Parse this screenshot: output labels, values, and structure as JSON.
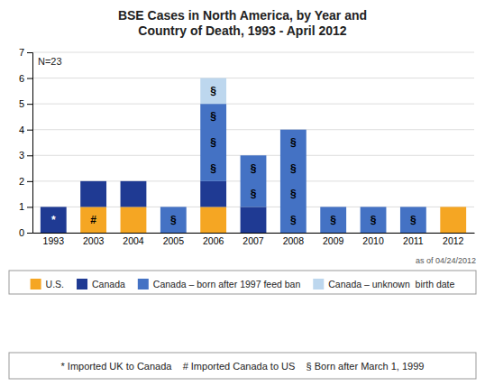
{
  "chart_data": {
    "type": "bar",
    "stacked": true,
    "title": "BSE Cases in North America, by Year and\nCountry of Death, 1993 - April 2012",
    "categories": [
      "1993",
      "2003",
      "2004",
      "2005",
      "2006",
      "2007",
      "2008",
      "2009",
      "2010",
      "2011",
      "2012"
    ],
    "series": [
      {
        "name": "U.S.",
        "color": "#F5A623",
        "values": [
          0,
          1,
          1,
          0,
          1,
          0,
          0,
          0,
          0,
          0,
          1
        ]
      },
      {
        "name": "Canada",
        "color": "#1F3A93",
        "values": [
          1,
          1,
          1,
          0,
          1,
          1,
          0,
          0,
          0,
          0,
          0
        ]
      },
      {
        "name": "Canada – born after 1997 feed ban",
        "color": "#4472C4",
        "values": [
          0,
          0,
          0,
          1,
          3,
          2,
          4,
          1,
          1,
          1,
          0
        ]
      },
      {
        "name": "Canada – unknown  birth date",
        "color": "#BDD7EE",
        "values": [
          0,
          0,
          0,
          0,
          1,
          0,
          0,
          0,
          0,
          0,
          0
        ]
      }
    ],
    "ylim": [
      0,
      7
    ],
    "yticks": [
      0,
      1,
      2,
      3,
      4,
      5,
      6,
      7
    ],
    "grid": true,
    "legend": "bottom",
    "annotations": [
      {
        "text": "*",
        "x": "1993",
        "y": 0.5,
        "color": "#FFFFFF"
      },
      {
        "text": "#",
        "x": "2003",
        "y": 0.5,
        "color": "#000000"
      },
      {
        "text": "§",
        "x": "2005",
        "y": 0.5,
        "color": "#000000"
      },
      {
        "text": "§",
        "x": "2006",
        "y": 2.5,
        "color": "#000000"
      },
      {
        "text": "§",
        "x": "2006",
        "y": 3.5,
        "color": "#000000"
      },
      {
        "text": "§",
        "x": "2006",
        "y": 4.5,
        "color": "#000000"
      },
      {
        "text": "§",
        "x": "2006",
        "y": 5.5,
        "color": "#000000"
      },
      {
        "text": "§",
        "x": "2007",
        "y": 1.5,
        "color": "#000000"
      },
      {
        "text": "§",
        "x": "2007",
        "y": 2.5,
        "color": "#000000"
      },
      {
        "text": "§",
        "x": "2008",
        "y": 0.5,
        "color": "#000000"
      },
      {
        "text": "§",
        "x": "2008",
        "y": 1.5,
        "color": "#000000"
      },
      {
        "text": "§",
        "x": "2008",
        "y": 2.5,
        "color": "#000000"
      },
      {
        "text": "§",
        "x": "2008",
        "y": 3.5,
        "color": "#000000"
      },
      {
        "text": "§",
        "x": "2009",
        "y": 0.5,
        "color": "#000000"
      },
      {
        "text": "§",
        "x": "2010",
        "y": 0.5,
        "color": "#000000"
      },
      {
        "text": "§",
        "x": "2011",
        "y": 0.5,
        "color": "#000000"
      }
    ],
    "notes": [
      "N=23",
      "as of 04/24/2012",
      "* Imported UK to Canada    # Imported Canada to US    § Born after March 1, 1999"
    ]
  }
}
